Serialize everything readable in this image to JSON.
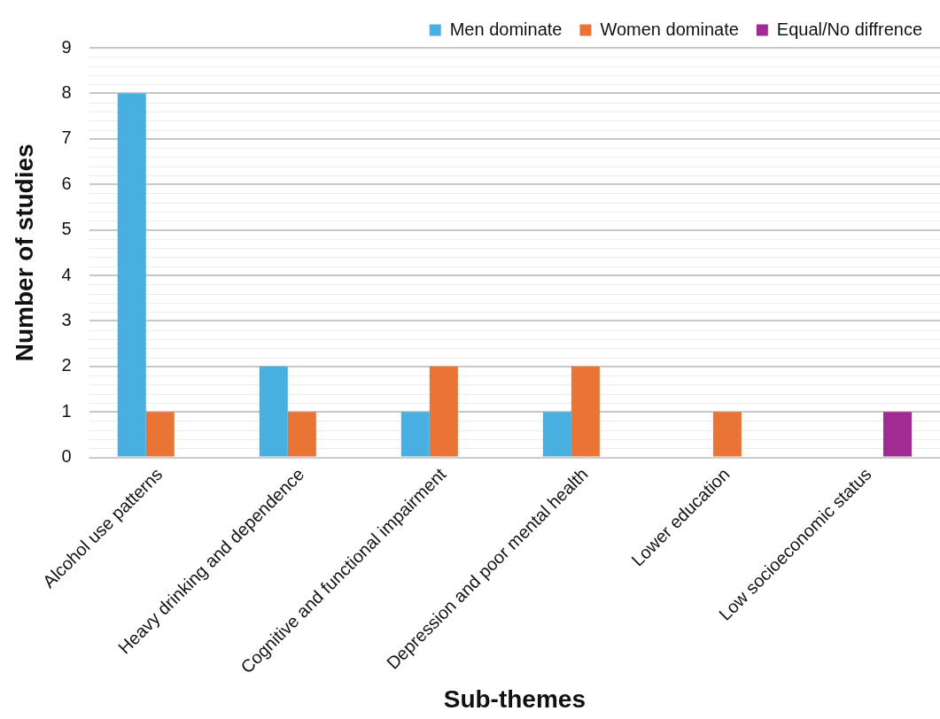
{
  "chart_data": {
    "type": "bar",
    "xlabel": "Sub-themes",
    "ylabel": "Number of studies",
    "categories": [
      "Alcohol use patterns",
      "Heavy drinking and dependence",
      "Cognitive and functional impairment",
      "Depression and poor mental health",
      "Lower education",
      "Low socioeconomic status"
    ],
    "series": [
      {
        "name": "Men dominate",
        "color": "#47b0e0",
        "values": [
          8,
          2,
          1,
          1,
          null,
          null
        ]
      },
      {
        "name": "Women dominate",
        "color": "#ea7435",
        "values": [
          1,
          1,
          2,
          2,
          1,
          null
        ]
      },
      {
        "name": "Equal/No diffrence",
        "color": "#a02b93",
        "values": [
          null,
          null,
          null,
          null,
          null,
          1
        ]
      }
    ],
    "ylim": [
      0,
      9
    ],
    "yticks": [
      0,
      1,
      2,
      3,
      4,
      5,
      6,
      7,
      8,
      9
    ],
    "grid": "y",
    "legend": "top right"
  }
}
